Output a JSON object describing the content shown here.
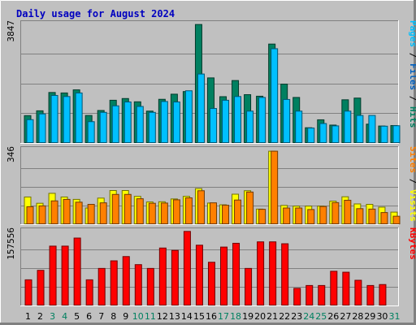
{
  "chart_data": {
    "type": "bar",
    "title": "Daily usage for August 2024",
    "categories": [
      "1",
      "2",
      "3",
      "4",
      "5",
      "6",
      "7",
      "8",
      "9",
      "10",
      "11",
      "12",
      "13",
      "14",
      "15",
      "16",
      "17",
      "18",
      "19",
      "20",
      "21",
      "22",
      "23",
      "24",
      "25",
      "26",
      "27",
      "28",
      "29",
      "30",
      "31"
    ],
    "weekend_days": [
      "3",
      "4",
      "10",
      "11",
      "17",
      "18",
      "24",
      "25",
      "31"
    ],
    "panels": [
      {
        "id": "hits",
        "max_label": "3847",
        "ymax": 3847,
        "axis_label_parts": [
          {
            "text": "Pages",
            "color": "#00c0ff"
          },
          {
            "text": " / ",
            "color": "#000000"
          },
          {
            "text": "Files",
            "color": "#0060c0"
          },
          {
            "text": " / ",
            "color": "#000000"
          },
          {
            "text": "Hits",
            "color": "#008060"
          }
        ],
        "series": [
          {
            "name": "Hits",
            "color": "#008060",
            "values": [
              895,
              1050,
              1640,
              1625,
              1725,
              900,
              1060,
              1390,
              1445,
              1340,
              1040,
              1420,
              1585,
              1670,
              3830,
              2110,
              1505,
              2025,
              1570,
              1520,
              3200,
              1910,
              1480,
              505,
              760,
              590,
              1405,
              1460,
              620,
              560,
              575
            ]
          },
          {
            "name": "Files",
            "color": "#00c0ff",
            "values": [
              765,
              950,
              1545,
              1510,
              1625,
              700,
              1000,
              1210,
              1335,
              1190,
              1000,
              1350,
              1335,
              1695,
              2235,
              1125,
              1390,
              1510,
              1040,
              1480,
              3050,
              1415,
              1040,
              495,
              640,
              565,
              1040,
              900,
              900,
              555,
              570
            ]
          }
        ]
      },
      {
        "id": "visits",
        "max_label": "346",
        "ymax": 346,
        "axis_label_parts": [
          {
            "text": "Sites",
            "color": "#ff8000"
          },
          {
            "text": " / ",
            "color": "#000000"
          },
          {
            "text": "Visits",
            "color": "#ffff00"
          }
        ],
        "series": [
          {
            "name": "Visits",
            "color": "#ffff00",
            "values": [
              128,
              99,
              145,
              128,
              117,
              77,
              123,
              158,
              158,
              131,
              105,
              106,
              119,
              131,
              167,
              100,
              92,
              141,
              157,
              72,
              340,
              89,
              86,
              86,
              86,
              109,
              129,
              96,
              94,
              81,
              58
            ]
          },
          {
            "name": "Sites",
            "color": "#ff8000",
            "values": [
              83,
              87,
              110,
              117,
              104,
              94,
              101,
              140,
              140,
              120,
              99,
              100,
              115,
              124,
              157,
              101,
              90,
              114,
              151,
              71,
              340,
              77,
              77,
              70,
              84,
              102,
              113,
              74,
              72,
              56,
              39
            ]
          }
        ]
      },
      {
        "id": "kbytes",
        "max_label": "157556",
        "ymax": 157556,
        "axis_label_parts": [
          {
            "text": "KBytes",
            "color": "#ff0000"
          }
        ],
        "series": [
          {
            "name": "KBytes",
            "color": "#ff0000",
            "values": [
              55000,
              75000,
              126000,
              126000,
              143000,
              55000,
              79000,
              95000,
              104000,
              87000,
              79000,
              122000,
              117000,
              157000,
              128000,
              92000,
              124000,
              132000,
              79000,
              135000,
              135000,
              131000,
              37000,
              43000,
              43000,
              73000,
              71000,
              54000,
              43000,
              45000,
              0
            ]
          }
        ]
      }
    ]
  }
}
